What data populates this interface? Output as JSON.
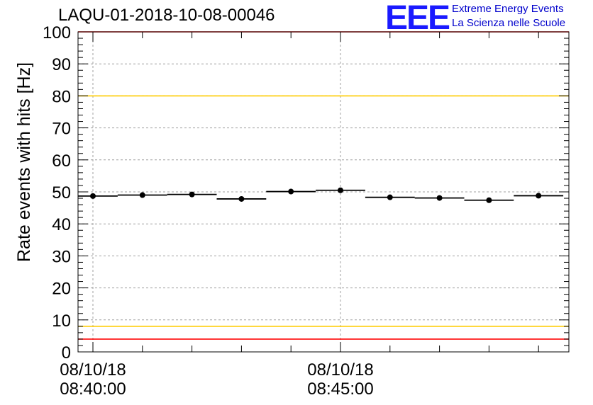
{
  "chart_data": {
    "type": "scatter",
    "title": "LAQU-01-2018-10-08-00046",
    "ylabel": "Rate events with hits [Hz]",
    "xlabel": "",
    "ylim": [
      0,
      100
    ],
    "yticks": [
      "0",
      "10",
      "20",
      "30",
      "40",
      "50",
      "60",
      "70",
      "80",
      "90",
      "100"
    ],
    "x_tick_labels": [
      {
        "date": "08/10/18",
        "time": "08:40:00"
      },
      {
        "date": "08/10/18",
        "time": "08:45:00"
      }
    ],
    "grid": true,
    "series": [
      {
        "x": [
          "08:40:00",
          "08:41:00",
          "08:42:00",
          "08:43:00",
          "08:44:00",
          "08:45:00",
          "08:46:00",
          "08:47:00",
          "08:48:00",
          "08:49:00"
        ],
        "values": [
          48.7,
          49.0,
          49.2,
          47.8,
          50.1,
          50.5,
          48.3,
          48.1,
          47.4,
          48.8
        ]
      }
    ],
    "reference_lines": [
      {
        "y": 100,
        "color": "#ff0000"
      },
      {
        "y": 80,
        "color": "#ffcc00"
      },
      {
        "y": 8,
        "color": "#ffcc00"
      },
      {
        "y": 4,
        "color": "#ff0000"
      }
    ]
  },
  "logo": {
    "mark": "EEE",
    "line1": "Extreme Energy Events",
    "line2": "La Scienza nelle Scuole"
  }
}
